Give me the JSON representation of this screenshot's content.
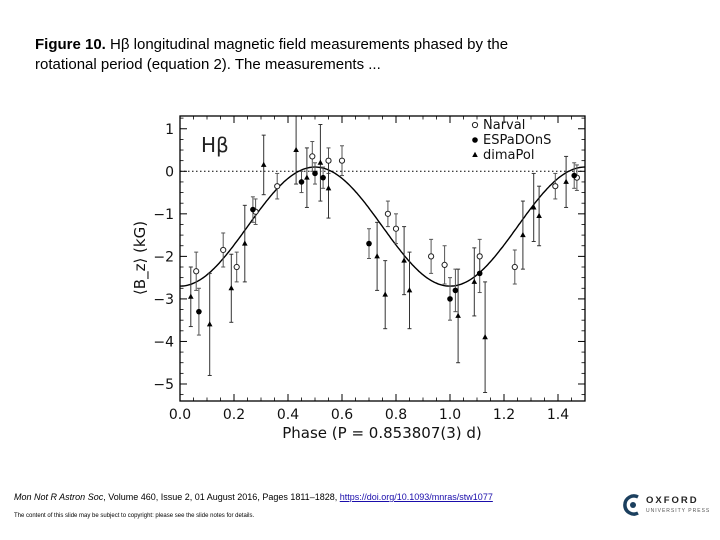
{
  "caption": {
    "fig_label": "Figure 10.",
    "text": " Hβ longitudinal magnetic field measurements phased by the rotational period (equation 2). The measurements ..."
  },
  "citation": {
    "journal": "Mon Not R Astron Soc",
    "details": ", Volume 460, Issue 2, 01 August 2016, Pages 1811–1828,",
    "doi": "https://doi.org/10.1093/mnras/stw1077"
  },
  "copyright": "The content of this slide may be subject to copyright: please see the slide notes for details.",
  "publisher": {
    "name": "OXFORD",
    "sub": "UNIVERSITY PRESS"
  },
  "chart_data": {
    "type": "scatter",
    "panel_label": "Hβ",
    "xlabel": "Phase (P = 0.853807(3) d)",
    "ylabel": "⟨B_z⟩ (kG)",
    "xlim": [
      0.0,
      1.5
    ],
    "ylim": [
      -5.4,
      1.3
    ],
    "xticks": [
      0.0,
      0.2,
      0.4,
      0.6,
      0.8,
      1.0,
      1.2,
      1.4
    ],
    "xtick_labels": [
      "0.0",
      "0.2",
      "0.4",
      "0.6",
      "0.8",
      "1.0",
      "1.2",
      "1.4"
    ],
    "yticks": [
      1,
      0,
      -1,
      -2,
      -3,
      -4,
      -5
    ],
    "ytick_labels": [
      "1",
      "0",
      "−1",
      "−2",
      "−3",
      "−4",
      "−5"
    ],
    "reference_line": 0,
    "fit_curve": {
      "mean": -1.3,
      "amplitude": 1.4,
      "phase_of_max": 0.5,
      "phase_of_min": 1.0
    },
    "series": [
      {
        "name": "Narval",
        "marker": "open-circle",
        "points": [
          {
            "x": 0.06,
            "y": -2.35,
            "err": 0.45
          },
          {
            "x": 0.16,
            "y": -1.85,
            "err": 0.4
          },
          {
            "x": 0.21,
            "y": -2.25,
            "err": 0.35
          },
          {
            "x": 0.28,
            "y": -0.95,
            "err": 0.3
          },
          {
            "x": 0.36,
            "y": -0.35,
            "err": 0.3
          },
          {
            "x": 0.49,
            "y": 0.35,
            "err": 0.35
          },
          {
            "x": 0.55,
            "y": 0.25,
            "err": 0.3
          },
          {
            "x": 0.6,
            "y": 0.25,
            "err": 0.35
          },
          {
            "x": 0.77,
            "y": -1.0,
            "err": 0.3
          },
          {
            "x": 0.8,
            "y": -1.35,
            "err": 0.35
          },
          {
            "x": 0.93,
            "y": -2.0,
            "err": 0.4
          },
          {
            "x": 0.98,
            "y": -2.2,
            "err": 0.45
          },
          {
            "x": 1.11,
            "y": -2.0,
            "err": 0.4
          },
          {
            "x": 1.24,
            "y": -2.25,
            "err": 0.4
          },
          {
            "x": 1.39,
            "y": -0.35,
            "err": 0.3
          },
          {
            "x": 1.47,
            "y": -0.15,
            "err": 0.3
          }
        ]
      },
      {
        "name": "ESPaDOnS",
        "marker": "filled-circle",
        "points": [
          {
            "x": 0.07,
            "y": -3.3,
            "err": 0.55
          },
          {
            "x": 0.27,
            "y": -0.9,
            "err": 0.3
          },
          {
            "x": 0.45,
            "y": -0.25,
            "err": 0.25
          },
          {
            "x": 0.5,
            "y": -0.05,
            "err": 0.25
          },
          {
            "x": 0.53,
            "y": -0.15,
            "err": 0.25
          },
          {
            "x": 0.7,
            "y": -1.7,
            "err": 0.35
          },
          {
            "x": 1.0,
            "y": -3.0,
            "err": 0.5
          },
          {
            "x": 1.02,
            "y": -2.8,
            "err": 0.5
          },
          {
            "x": 1.11,
            "y": -2.4,
            "err": 0.45
          },
          {
            "x": 1.46,
            "y": -0.1,
            "err": 0.3
          }
        ]
      },
      {
        "name": "dimaPol",
        "marker": "filled-triangle",
        "points": [
          {
            "x": 0.04,
            "y": -2.95,
            "err": 0.7
          },
          {
            "x": 0.11,
            "y": -3.6,
            "err": 1.2
          },
          {
            "x": 0.19,
            "y": -2.75,
            "err": 0.8
          },
          {
            "x": 0.24,
            "y": -1.7,
            "err": 0.9
          },
          {
            "x": 0.31,
            "y": 0.15,
            "err": 0.7
          },
          {
            "x": 0.43,
            "y": 0.5,
            "err": 0.8
          },
          {
            "x": 0.47,
            "y": -0.15,
            "err": 0.7
          },
          {
            "x": 0.52,
            "y": 0.2,
            "err": 0.9
          },
          {
            "x": 0.55,
            "y": -0.4,
            "err": 0.7
          },
          {
            "x": 0.73,
            "y": -2.0,
            "err": 0.8
          },
          {
            "x": 0.76,
            "y": -2.9,
            "err": 0.8
          },
          {
            "x": 0.83,
            "y": -2.1,
            "err": 0.8
          },
          {
            "x": 0.85,
            "y": -2.8,
            "err": 0.9
          },
          {
            "x": 1.03,
            "y": -3.4,
            "err": 1.1
          },
          {
            "x": 1.09,
            "y": -2.6,
            "err": 0.8
          },
          {
            "x": 1.13,
            "y": -3.9,
            "err": 1.3
          },
          {
            "x": 1.27,
            "y": -1.5,
            "err": 0.8
          },
          {
            "x": 1.31,
            "y": -0.85,
            "err": 0.8
          },
          {
            "x": 1.33,
            "y": -1.05,
            "err": 0.7
          },
          {
            "x": 1.43,
            "y": -0.25,
            "err": 0.6
          }
        ]
      }
    ]
  }
}
